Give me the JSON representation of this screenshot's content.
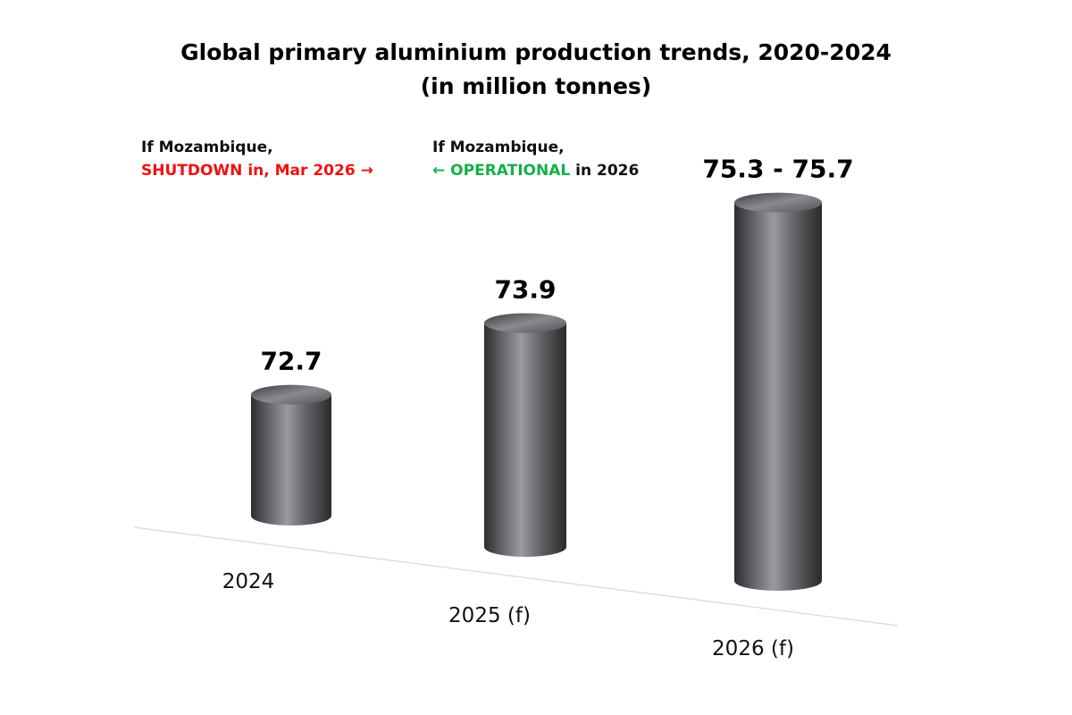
{
  "chart_data": {
    "type": "bar",
    "style": "3d-cylinder",
    "title": "Global primary aluminium production trends, 2020-2024",
    "subtitle": "(in million tonnes)",
    "categories": [
      "2024",
      "2025 (f)",
      "2026 (f)"
    ],
    "values": [
      72.7,
      73.9,
      [
        75.3,
        75.7
      ]
    ],
    "data_labels": [
      "72.7",
      "73.9",
      "75.3 - 75.7"
    ],
    "units": "million tonnes",
    "grid": false,
    "colors": {
      "bar": "#5a5a5e",
      "shutdown": "#f01010",
      "operational": "#14b04a"
    },
    "annotations": [
      {
        "line1": "If Mozambique,",
        "highlight": "SHUTDOWN in, Mar 2026",
        "arrow": "→",
        "rest": ""
      },
      {
        "line1": "If Mozambique,",
        "arrow": "←",
        "highlight": "OPERATIONAL",
        "rest": " in 2026"
      }
    ]
  }
}
